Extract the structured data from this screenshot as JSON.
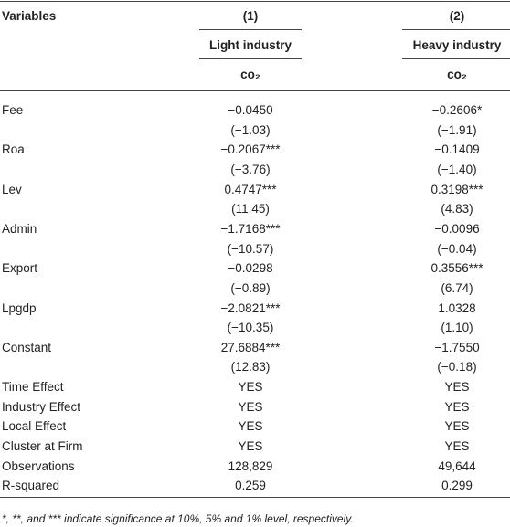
{
  "header": {
    "variables": "Variables",
    "col1_number": "(1)",
    "col2_number": "(2)",
    "col1_group": "Light industry",
    "col2_group": "Heavy industry",
    "col1_dependent": "co₂",
    "col2_dependent": "co₂"
  },
  "table": {
    "rows": [
      [
        "Fee",
        "−0.0450",
        "−0.2606*"
      ],
      [
        null,
        "(−1.03)",
        "(−1.91)"
      ],
      [
        "Roa",
        "−0.2067***",
        "−0.1409"
      ],
      [
        null,
        "(−3.76)",
        "(−1.40)"
      ],
      [
        "Lev",
        "0.4747***",
        "0.3198***"
      ],
      [
        null,
        "(11.45)",
        "(4.83)"
      ],
      [
        "Admin",
        "−1.7168***",
        "−0.0096"
      ],
      [
        null,
        "(−10.57)",
        "(−0.04)"
      ],
      [
        "Export",
        "−0.0298",
        "0.3556***"
      ],
      [
        null,
        "(−0.89)",
        "(6.74)"
      ],
      [
        "Lpgdp",
        "−2.0821***",
        "1.0328"
      ],
      [
        null,
        "(−10.35)",
        "(1.10)"
      ],
      [
        "Constant",
        "27.6884***",
        "−1.7550"
      ],
      [
        null,
        "(12.83)",
        "(−0.18)"
      ],
      [
        "Time Effect",
        "YES",
        "YES"
      ],
      [
        "Industry Effect",
        "YES",
        "YES"
      ],
      [
        "Local Effect",
        "YES",
        "YES"
      ],
      [
        "Cluster at Firm",
        "YES",
        "YES"
      ],
      [
        "Observations",
        "128,829",
        "49,644"
      ],
      [
        "R-squared",
        "0.259",
        "0.299"
      ]
    ]
  },
  "footnote": "*, **, and *** indicate significance at 10%, 5% and 1% level, respectively."
}
